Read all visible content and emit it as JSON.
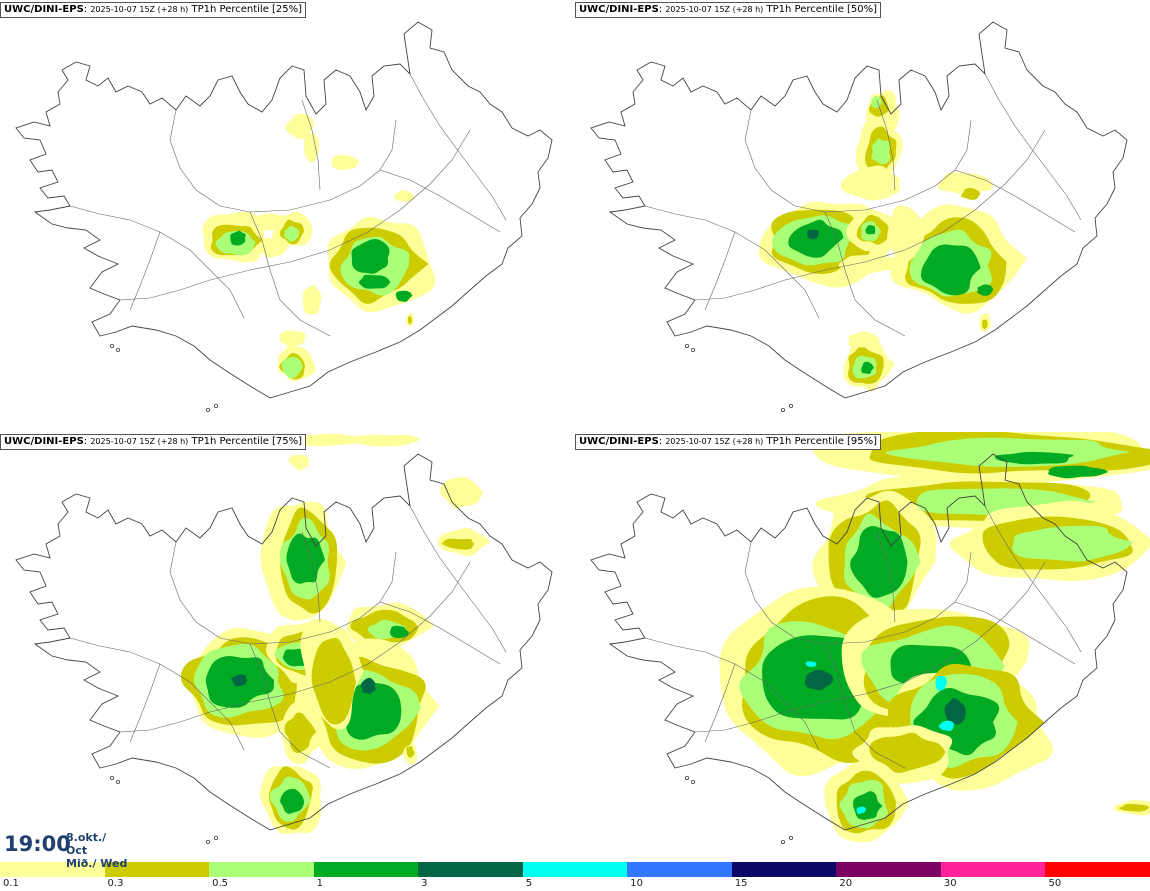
{
  "panels": [
    {
      "model": "UWC/DINI-EPS",
      "run": "2025-10-07 15Z (+28 h)",
      "param": "TP1h Percentile [25%]",
      "level": 0
    },
    {
      "model": "UWC/DINI-EPS",
      "run": "2025-10-07 15Z (+28 h)",
      "param": "TP1h Percentile [50%]",
      "level": 1
    },
    {
      "model": "UWC/DINI-EPS",
      "run": "2025-10-07 15Z (+28 h)",
      "param": "TP1h Percentile [75%]",
      "level": 2
    },
    {
      "model": "UWC/DINI-EPS",
      "run": "2025-10-07 15Z (+28 h)",
      "param": "TP1h Percentile [95%]",
      "level": 3
    }
  ],
  "valid_time": {
    "clock": "19:00",
    "date_line1": "8.okt./ Oct",
    "date_line2": "Mið./ Wed"
  },
  "legend": {
    "labels": [
      "0.1",
      "0.3",
      "0.5",
      "1",
      "3",
      "5",
      "10",
      "15",
      "20",
      "30",
      "50"
    ],
    "colors": [
      "#ffff99",
      "#cccc00",
      "#aaff77",
      "#00aa22",
      "#006644",
      "#00ffee",
      "#3377ff",
      "#0a0a66",
      "#7a0066",
      "#ff2299",
      "#ff0000"
    ]
  }
}
